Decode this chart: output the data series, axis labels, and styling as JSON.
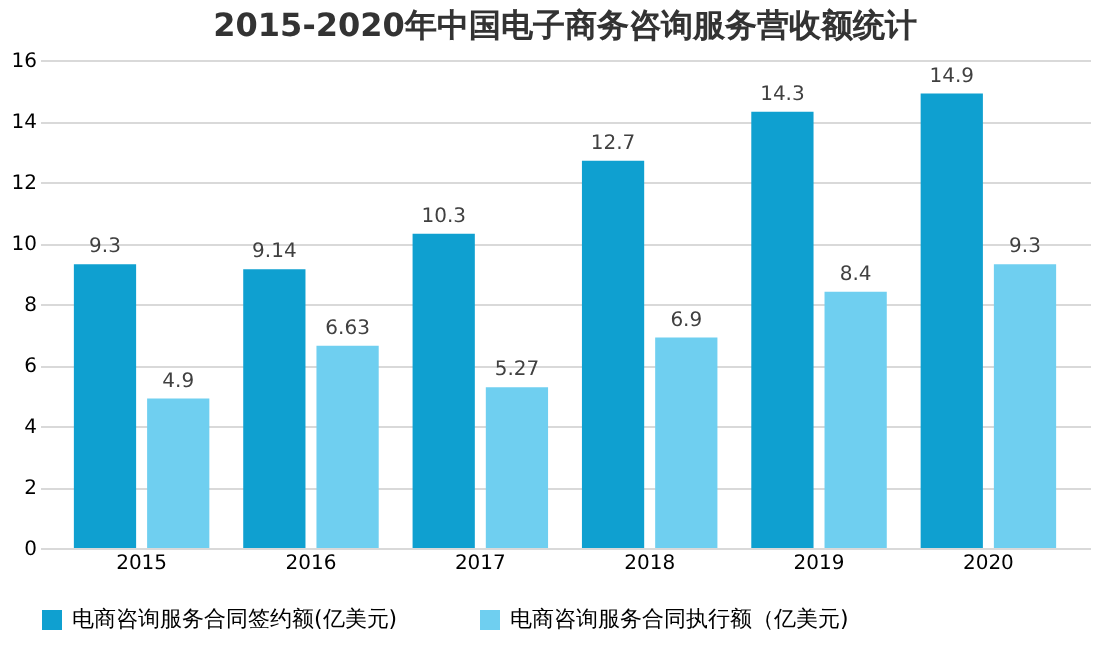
{
  "chart_data": {
    "type": "bar",
    "title": "2015-2020年中国电子商务咨询服务营收额统计",
    "categories": [
      "2015",
      "2016",
      "2017",
      "2018",
      "2019",
      "2020"
    ],
    "series": [
      {
        "name": "电商咨询服务合同签约额(亿美元)",
        "color": "#0fa0d0",
        "values": [
          9.3,
          9.14,
          10.3,
          12.7,
          14.3,
          14.9
        ]
      },
      {
        "name": "电商咨询服务合同执行额（亿美元)",
        "color": "#6fcff0",
        "values": [
          4.9,
          6.63,
          5.27,
          6.9,
          8.4,
          9.3
        ]
      }
    ],
    "ylim": [
      0,
      16
    ],
    "yticks": [
      0,
      2,
      4,
      6,
      8,
      10,
      12,
      14,
      16
    ],
    "grid": "y",
    "legend": "bottom",
    "data_labels": true
  }
}
